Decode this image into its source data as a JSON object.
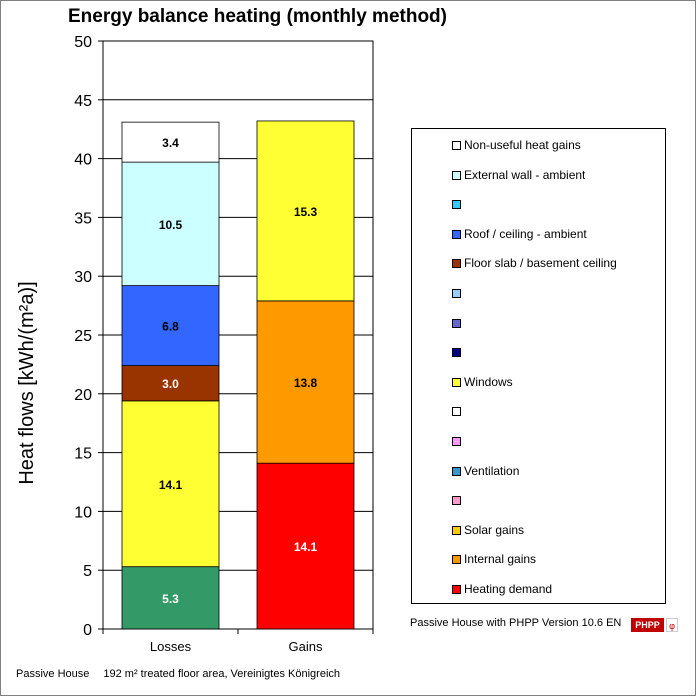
{
  "chart_data": {
    "type": "bar",
    "stacked": true,
    "title": "Energy balance heating (monthly method)",
    "ylabel": "Heat flows [kWh/(m²a)]",
    "xlabel": "",
    "ylim": [
      0,
      50
    ],
    "yticks": [
      0,
      5,
      10,
      15,
      20,
      25,
      30,
      35,
      40,
      45,
      50
    ],
    "categories": [
      "Losses",
      "Gains"
    ],
    "grid": true,
    "legend_position": "right",
    "series": [
      {
        "name": "Ventilation",
        "color": "#339966",
        "values": [
          5.3,
          0
        ]
      },
      {
        "name": "Windows",
        "color": "#ffff33",
        "values": [
          14.1,
          0
        ]
      },
      {
        "name": "Floor slab / basement ceiling",
        "color": "#993300",
        "values": [
          3.0,
          0
        ]
      },
      {
        "name": "Roof / ceiling - ambient",
        "color": "#3366ff",
        "values": [
          6.8,
          0
        ]
      },
      {
        "name": "External wall - ambient",
        "color": "#ccffff",
        "values": [
          10.5,
          0
        ]
      },
      {
        "name": "Non-useful heat gains",
        "color": "#ffffff",
        "values": [
          3.4,
          0
        ]
      },
      {
        "name": "Heating demand",
        "color": "#ff0000",
        "values": [
          0,
          14.1
        ]
      },
      {
        "name": "Internal gains",
        "color": "#ff9900",
        "values": [
          0,
          13.8
        ]
      },
      {
        "name": "Solar gains",
        "color": "#ffff33",
        "values": [
          0,
          15.3
        ]
      }
    ],
    "data_labels": [
      {
        "category": "Losses",
        "text": "5.3",
        "value": 5.3,
        "mid": 2.65,
        "color": "#ffffff"
      },
      {
        "category": "Losses",
        "text": "14.1",
        "value": 14.1,
        "mid": 12.35,
        "color": "#000000"
      },
      {
        "category": "Losses",
        "text": "3.0",
        "value": 3.0,
        "mid": 20.9,
        "color": "#ffffff"
      },
      {
        "category": "Losses",
        "text": "6.8",
        "value": 6.8,
        "mid": 25.8,
        "color": "#000000"
      },
      {
        "category": "Losses",
        "text": "10.5",
        "value": 10.5,
        "mid": 34.45,
        "color": "#000000"
      },
      {
        "category": "Losses",
        "text": "3.4",
        "value": 3.4,
        "mid": 41.4,
        "color": "#000000"
      },
      {
        "category": "Gains",
        "text": "14.1",
        "value": 14.1,
        "mid": 7.05,
        "color": "#ffffff"
      },
      {
        "category": "Gains",
        "text": "13.8",
        "value": 13.8,
        "mid": 21.0,
        "color": "#000000"
      },
      {
        "category": "Gains",
        "text": "15.3",
        "value": 15.3,
        "mid": 35.55,
        "color": "#000000"
      }
    ],
    "legend": [
      {
        "label": "Non-useful heat gains",
        "color": "#ffffff"
      },
      {
        "label": "External wall - ambient",
        "color": "#ccffff"
      },
      {
        "label": "",
        "color": "#33ccff"
      },
      {
        "label": "Roof / ceiling - ambient",
        "color": "#3366ff"
      },
      {
        "label": "Floor slab / basement ceiling",
        "color": "#993300"
      },
      {
        "label": "",
        "color": "#99ccff"
      },
      {
        "label": "",
        "color": "#6666cc"
      },
      {
        "label": "",
        "color": "#000080"
      },
      {
        "label": "Windows",
        "color": "#ffff33"
      },
      {
        "label": "",
        "color": "#ffffff"
      },
      {
        "label": "",
        "color": "#ff99ff"
      },
      {
        "label": "Ventilation",
        "color": "#3399cc"
      },
      {
        "label": "",
        "color": "#ff99cc"
      },
      {
        "label": "Solar gains",
        "color": "#ffcc00"
      },
      {
        "label": "Internal gains",
        "color": "#ff9900"
      },
      {
        "label": "Heating demand",
        "color": "#ff0000"
      }
    ]
  },
  "footer": {
    "left_org": "Passive House",
    "left_info": "192 m² treated floor area, Vereinigtes Königreich",
    "version": "Passive House with PHPP Version 10.6 EN",
    "logo_text": "PHPP",
    "logo_symbol": "φ"
  }
}
